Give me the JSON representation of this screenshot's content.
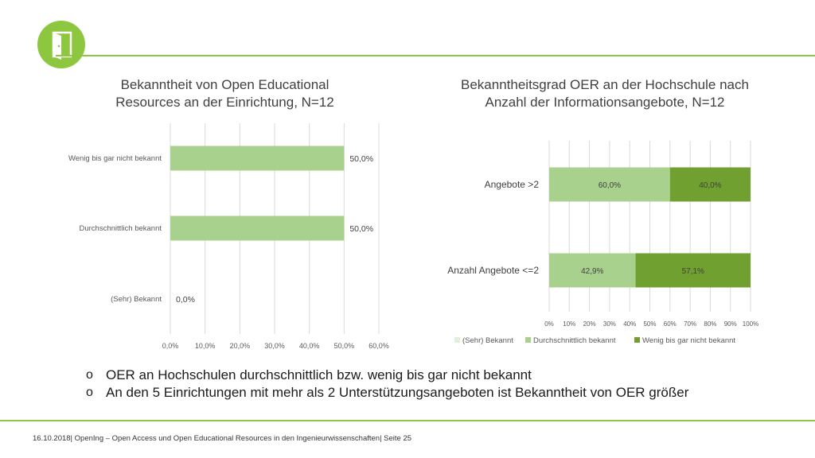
{
  "slide": {
    "bullet_marker": "o",
    "bullets": [
      "OER an Hochschulen durchschnittlich bzw. wenig bis gar nicht bekannt",
      "An den 5 Einrichtungen mit mehr als 2 Unterstützungsangeboten ist Bekanntheit von OER größer"
    ],
    "footer": "16.10.2018| OpenIng – Open Access und Open Educational Resources in den Ingenieurwissenschaften| Seite 25",
    "colors": {
      "accent": "#8dc63f",
      "light_green": "#c5e0a5",
      "mid_green": "#a9d18e",
      "dark_green": "#70a030"
    }
  },
  "chart_data": [
    {
      "type": "bar",
      "orientation": "horizontal",
      "title": "Bekanntheit von Open Educational Resources an der Einrichtung, N=12",
      "categories": [
        "Wenig bis gar nicht bekannt",
        "Durchschnittlich bekannt",
        "(Sehr) Bekannt"
      ],
      "values": [
        50.0,
        50.0,
        0.0
      ],
      "value_labels": [
        "50,0%",
        "50,0%",
        "0,0%"
      ],
      "xlim": [
        0,
        60
      ],
      "xticks": [
        "0,0%",
        "10,0%",
        "20,0%",
        "30,0%",
        "40,0%",
        "50,0%",
        "60,0%"
      ],
      "grid": true,
      "color": "#a9d18e"
    },
    {
      "type": "bar",
      "orientation": "horizontal",
      "stacked": "percent",
      "title": "Bekanntheitsgrad OER an der Hochschule nach Anzahl der Informationsangebote, N=12",
      "categories": [
        "Angebote >2",
        "Anzahl Angebote <=2"
      ],
      "series": [
        {
          "name": "(Sehr) Bekannt",
          "values": [
            0,
            0
          ],
          "labels": [
            "",
            ""
          ],
          "color": "#e2efd9"
        },
        {
          "name": "Durchschnittlich bekannt",
          "values": [
            60.0,
            42.9
          ],
          "labels": [
            "60,0%",
            "42,9%"
          ],
          "color": "#a9d18e"
        },
        {
          "name": "Wenig bis gar nicht bekannt",
          "values": [
            40.0,
            57.1
          ],
          "labels": [
            "40,0%",
            "57,1%"
          ],
          "color": "#70a030"
        }
      ],
      "xlim": [
        0,
        100
      ],
      "xticks": [
        "0%",
        "10%",
        "20%",
        "30%",
        "40%",
        "50%",
        "60%",
        "70%",
        "80%",
        "90%",
        "100%"
      ],
      "grid": true,
      "legend": "bottom"
    }
  ]
}
